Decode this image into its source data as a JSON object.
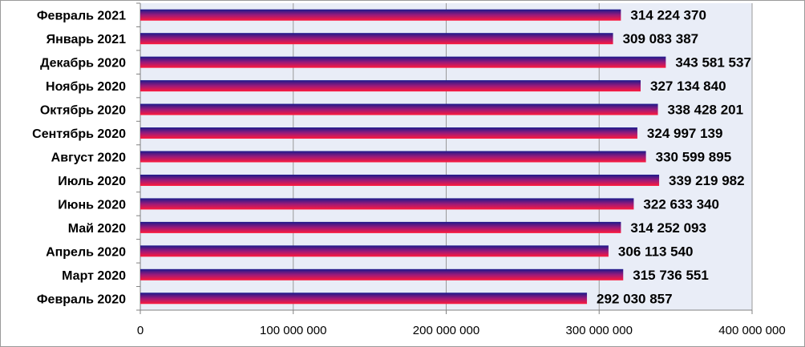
{
  "chart_data": {
    "type": "bar",
    "orientation": "horizontal",
    "categories": [
      "Февраль 2021",
      "Январь 2021",
      "Декабрь 2020",
      "Ноябрь 2020",
      "Октябрь 2020",
      "Сентябрь 2020",
      "Август 2020",
      "Июль 2020",
      "Июнь 2020",
      "Май 2020",
      "Апрель 2020",
      "Март 2020",
      "Февраль 2020"
    ],
    "values": [
      314224370,
      309083387,
      343581537,
      327134840,
      338428201,
      324997139,
      330599895,
      339219982,
      322633340,
      314252093,
      306113540,
      315736551,
      292030857
    ],
    "value_labels": [
      "314 224 370",
      "309 083 387",
      "343 581 537",
      "327 134 840",
      "338 428 201",
      "324 997 139",
      "330 599 895",
      "339 219 982",
      "322 633 340",
      "314 252 093",
      "306 113 540",
      "315 736 551",
      "292 030 857"
    ],
    "x_ticks": [
      0,
      100000000,
      200000000,
      300000000,
      400000000
    ],
    "x_tick_labels": [
      "0",
      "100 000 000",
      "200 000 000",
      "300 000 000",
      "400 000 000"
    ],
    "xlim": [
      0,
      400000000
    ],
    "grid": "vertical",
    "legend": "none",
    "colors": {
      "plot_background": "#e9edf7",
      "bar_top": "#1a1a8c",
      "bar_mid": "#9a1a7a",
      "bar_bottom": "#ff1a3c",
      "gridline": "#9a9a9a"
    }
  }
}
